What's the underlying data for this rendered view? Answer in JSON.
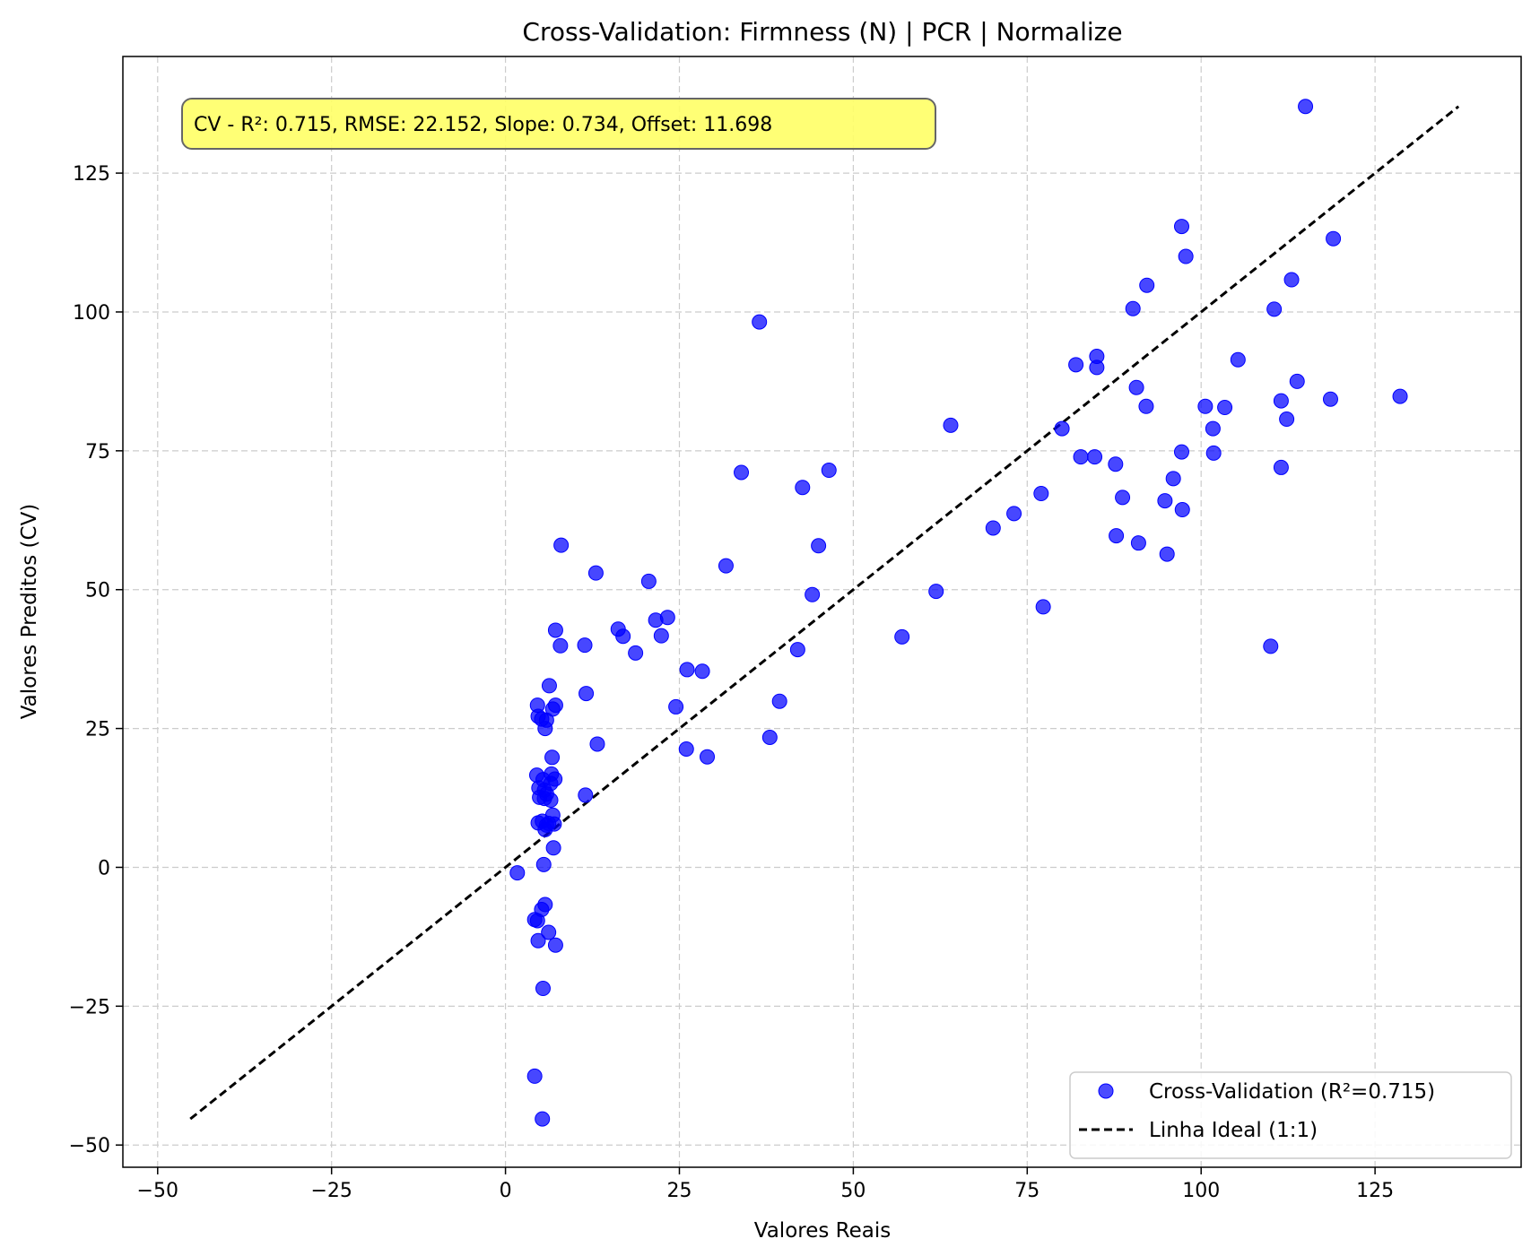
{
  "chart_data": {
    "type": "scatter",
    "title": "Cross-Validation: Firmness (N) | PCR | Normalize",
    "xlabel": "Valores Reais",
    "ylabel": "Valores Preditos (CV)",
    "xlim": [
      -55,
      146
    ],
    "ylim": [
      -54,
      146
    ],
    "xticks": [
      -50,
      -25,
      0,
      25,
      50,
      75,
      100,
      125
    ],
    "yticks": [
      -50,
      -25,
      0,
      25,
      50,
      75,
      100,
      125
    ],
    "xtick_labels": [
      "−50",
      "−25",
      "0",
      "25",
      "50",
      "75",
      "100",
      "125"
    ],
    "ytick_labels": [
      "−50",
      "−25",
      "0",
      "25",
      "50",
      "75",
      "100",
      "125"
    ],
    "grid": true,
    "legend_position": "bottom-right",
    "annotation": "CV - R²: 0.715, RMSE: 22.152, Slope: 0.734, Offset: 11.698",
    "colors": {
      "points": "#0000ff",
      "ideal_line": "#000000",
      "annotation_bg": "#ffff66",
      "grid": "#cccccc"
    },
    "series": [
      {
        "name": "Cross-Validation (R²=0.715)",
        "type": "scatter",
        "points": [
          [
            115,
            137
          ],
          [
            97.2,
            115.4
          ],
          [
            119,
            113.2
          ],
          [
            97.8,
            110
          ],
          [
            113,
            105.8
          ],
          [
            92.2,
            104.8
          ],
          [
            90.2,
            100.6
          ],
          [
            110.5,
            100.5
          ],
          [
            36.5,
            98.2
          ],
          [
            85,
            92
          ],
          [
            105.3,
            91.4
          ],
          [
            82,
            90.5
          ],
          [
            85,
            90
          ],
          [
            113.8,
            87.5
          ],
          [
            90.7,
            86.4
          ],
          [
            128.6,
            84.8
          ],
          [
            118.6,
            84.3
          ],
          [
            111.5,
            84
          ],
          [
            100.6,
            83
          ],
          [
            92.1,
            83
          ],
          [
            103.4,
            82.8
          ],
          [
            112.3,
            80.7
          ],
          [
            64,
            79.6
          ],
          [
            80,
            79
          ],
          [
            101.7,
            79
          ],
          [
            97.2,
            74.8
          ],
          [
            101.8,
            74.6
          ],
          [
            82.7,
            73.9
          ],
          [
            84.7,
            73.9
          ],
          [
            87.7,
            72.6
          ],
          [
            111.5,
            72
          ],
          [
            46.5,
            71.5
          ],
          [
            33.9,
            71.1
          ],
          [
            96,
            70
          ],
          [
            42.7,
            68.4
          ],
          [
            77,
            67.3
          ],
          [
            88.7,
            66.6
          ],
          [
            94.8,
            66
          ],
          [
            97.3,
            64.4
          ],
          [
            73.1,
            63.7
          ],
          [
            70.1,
            61.1
          ],
          [
            87.8,
            59.7
          ],
          [
            91,
            58.4
          ],
          [
            8,
            58
          ],
          [
            45,
            57.9
          ],
          [
            95.1,
            56.4
          ],
          [
            31.7,
            54.3
          ],
          [
            13,
            53
          ],
          [
            20.6,
            51.5
          ],
          [
            61.9,
            49.7
          ],
          [
            44.1,
            49.1
          ],
          [
            77.3,
            46.9
          ],
          [
            23.3,
            45
          ],
          [
            21.6,
            44.5
          ],
          [
            16.2,
            42.9
          ],
          [
            7.2,
            42.7
          ],
          [
            22.4,
            41.7
          ],
          [
            16.9,
            41.6
          ],
          [
            57,
            41.5
          ],
          [
            7.9,
            39.9
          ],
          [
            11.4,
            40
          ],
          [
            110,
            39.8
          ],
          [
            18.7,
            38.6
          ],
          [
            42,
            39.2
          ],
          [
            26.1,
            35.6
          ],
          [
            28.3,
            35.3
          ],
          [
            6.3,
            32.7
          ],
          [
            11.6,
            31.3
          ],
          [
            39.4,
            29.9
          ],
          [
            4.6,
            29.2
          ],
          [
            7.2,
            29.2
          ],
          [
            24.5,
            28.9
          ],
          [
            6.8,
            28.5
          ],
          [
            4.7,
            27.2
          ],
          [
            5.2,
            26.7
          ],
          [
            5.9,
            26.5
          ],
          [
            5.7,
            25
          ],
          [
            38,
            23.4
          ],
          [
            13.2,
            22.2
          ],
          [
            26,
            21.3
          ],
          [
            29,
            19.9
          ],
          [
            6.7,
            19.8
          ],
          [
            4.5,
            16.6
          ],
          [
            6.6,
            16.8
          ],
          [
            5.4,
            15.8
          ],
          [
            7.1,
            15.9
          ],
          [
            6.5,
            15.1
          ],
          [
            4.8,
            14.3
          ],
          [
            5.6,
            13.9
          ],
          [
            5.9,
            13.2
          ],
          [
            11.5,
            13
          ],
          [
            4.9,
            12.6
          ],
          [
            5.6,
            12.4
          ],
          [
            6.5,
            12.1
          ],
          [
            6.8,
            9.4
          ],
          [
            5.3,
            8.3
          ],
          [
            4.7,
            8
          ],
          [
            6.2,
            7.9
          ],
          [
            5.9,
            7.6
          ],
          [
            7,
            7.8
          ],
          [
            5.7,
            6.8
          ],
          [
            6.9,
            3.5
          ],
          [
            5.5,
            0.5
          ],
          [
            1.7,
            -1
          ],
          [
            5.7,
            -6.7
          ],
          [
            5.2,
            -7.6
          ],
          [
            4.2,
            -9.4
          ],
          [
            4.6,
            -9.6
          ],
          [
            6.2,
            -11.7
          ],
          [
            4.7,
            -13.2
          ],
          [
            7.2,
            -14
          ],
          [
            5.4,
            -21.8
          ],
          [
            4.2,
            -37.6
          ],
          [
            5.3,
            -45.3
          ]
        ]
      },
      {
        "name": "Linha Ideal (1:1)",
        "type": "line",
        "style": "dashed",
        "points": [
          [
            -45.3,
            -45.3
          ],
          [
            137,
            137
          ]
        ]
      }
    ]
  }
}
